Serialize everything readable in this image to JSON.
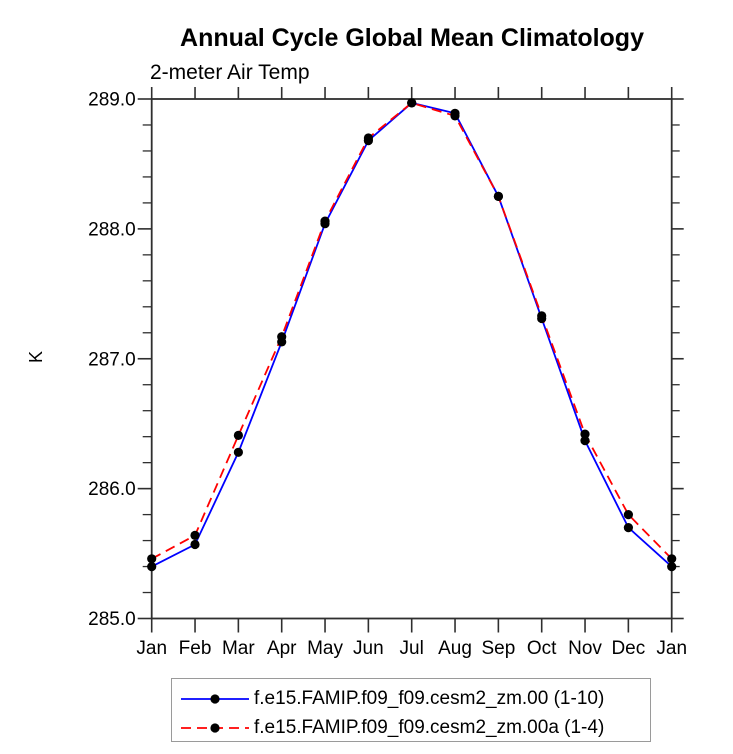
{
  "header": {
    "title": "Annual Cycle Global Mean Climatology",
    "subtitle": "2-meter Air Temp"
  },
  "chart_data": {
    "type": "line",
    "title": "Annual Cycle Global Mean Climatology",
    "subtitle": "2-meter Air Temp",
    "xlabel": "",
    "ylabel": "K",
    "categories": [
      "Jan",
      "Feb",
      "Mar",
      "Apr",
      "May",
      "Jun",
      "Jul",
      "Aug",
      "Sep",
      "Oct",
      "Nov",
      "Dec",
      "Jan"
    ],
    "series": [
      {
        "name": "f.e15.FAMIP.f09_f09.cesm2_zm.00 (1-10)",
        "color": "#0000ff",
        "line_style": "solid",
        "marker": "filled-circle",
        "marker_color": "#000000",
        "values": [
          285.4,
          285.57,
          286.28,
          287.13,
          288.04,
          288.68,
          288.97,
          288.89,
          288.25,
          287.31,
          286.37,
          285.7,
          285.4
        ]
      },
      {
        "name": "f.e15.FAMIP.f09_f09.cesm2_zm.00a (1-4)",
        "color": "#ff0000",
        "line_style": "dashed",
        "marker": "filled-circle",
        "marker_color": "#000000",
        "values": [
          285.46,
          285.64,
          286.41,
          287.17,
          288.06,
          288.7,
          288.97,
          288.87,
          288.25,
          287.33,
          286.42,
          285.8,
          285.46
        ]
      }
    ],
    "ylim": [
      285.0,
      289.0
    ],
    "ytick_step": 1.0,
    "ytick_minor_step": 0.2,
    "ytick_labels": [
      "285.0",
      "286.0",
      "287.0",
      "288.0",
      "289.0"
    ],
    "grid": false,
    "legend_position": "bottom",
    "axis_color": "#2f2f2f",
    "text_color": "#000000"
  }
}
